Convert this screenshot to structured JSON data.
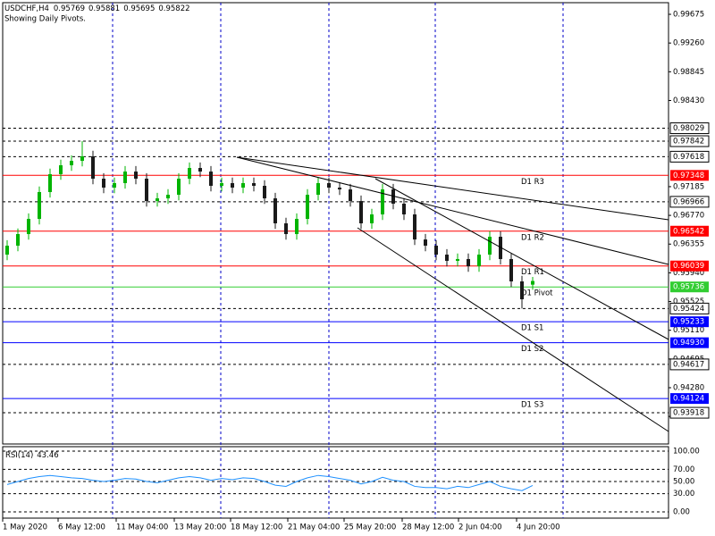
{
  "chart_data": {
    "type": "candlestick",
    "symbol": "USDCHF,H4",
    "ohlc_header": [
      0.95769,
      0.95881,
      0.95695,
      0.95822
    ],
    "subtitle": "Showing Daily Pivots.",
    "up_color": "#00b400",
    "down_color": "#1a1a1a",
    "ylim": [
      0.93467,
      0.99843
    ],
    "yticks": [
      0.99675,
      {
        "value": 0.9926,
        "label": "0.99260"
      },
      0.98845,
      {
        "value": 0.9843,
        "label": "0.98430"
      },
      0.97185,
      {
        "value": 0.9677,
        "label": "0.96770"
      },
      0.96355,
      {
        "value": 0.9594,
        "label": "0.95940"
      },
      0.95525,
      {
        "value": 0.9511,
        "label": "0.95110"
      },
      0.94695,
      {
        "value": 0.9428,
        "label": "0.94280"
      },
      0.93865
    ],
    "dashed_levels": [
      0.98029,
      0.97842,
      0.97618,
      0.96966,
      0.95424,
      0.94617,
      0.93918
    ],
    "pivots": [
      {
        "name": "D1 R3",
        "value": 0.97348,
        "color": "#ff0000"
      },
      {
        "name": "D1 R2",
        "value": 0.96542,
        "color": "#ff0000"
      },
      {
        "name": "D1 R1",
        "value": 0.96039,
        "color": "#ff0000"
      },
      {
        "name": "D1  Pivot",
        "value": 0.95736,
        "color": "#32cd32"
      },
      {
        "name": "D1 S1",
        "value": 0.95233,
        "color": "#0000ff"
      },
      {
        "name": "D1 S2",
        "value": 0.9493,
        "value_label": "0.94930",
        "color": "#0000ff"
      },
      {
        "name": "D1 S3",
        "value": 0.94124,
        "color": "#0000ff"
      }
    ],
    "candles": [
      [
        0.96203,
        0.96412,
        0.96123,
        0.96332
      ],
      [
        0.96332,
        0.9658,
        0.96252,
        0.965
      ],
      [
        0.965,
        0.96799,
        0.9642,
        0.96719
      ],
      [
        0.96719,
        0.97187,
        0.96639,
        0.97107
      ],
      [
        0.97107,
        0.97445,
        0.97027,
        0.97365
      ],
      [
        0.97365,
        0.97574,
        0.97285,
        0.97494
      ],
      [
        0.97494,
        0.97638,
        0.97414,
        0.97558
      ],
      [
        0.97558,
        0.97842,
        0.97478,
        0.97623
      ],
      [
        0.97623,
        0.97703,
        0.9722,
        0.973
      ],
      [
        0.973,
        0.9738,
        0.97091,
        0.97171
      ],
      [
        0.97171,
        0.97316,
        0.97091,
        0.97236
      ],
      [
        0.97236,
        0.97483,
        0.97156,
        0.97403
      ],
      [
        0.97403,
        0.97483,
        0.9722,
        0.973
      ],
      [
        0.973,
        0.9738,
        0.96897,
        0.96977
      ],
      [
        0.96977,
        0.97096,
        0.96897,
        0.97016
      ],
      [
        0.97016,
        0.97148,
        0.96936,
        0.97068
      ],
      [
        0.97068,
        0.9738,
        0.96988,
        0.973
      ],
      [
        0.973,
        0.97535,
        0.9722,
        0.97455
      ],
      [
        0.97455,
        0.97535,
        0.97323,
        0.97403
      ],
      [
        0.97403,
        0.97483,
        0.97117,
        0.97197
      ],
      [
        0.97197,
        0.97316,
        0.97117,
        0.97236
      ],
      [
        0.97236,
        0.97316,
        0.97091,
        0.97171
      ],
      [
        0.97171,
        0.97316,
        0.97091,
        0.97236
      ],
      [
        0.97236,
        0.97316,
        0.97117,
        0.97197
      ],
      [
        0.97197,
        0.97277,
        0.96936,
        0.97016
      ],
      [
        0.97016,
        0.97096,
        0.96575,
        0.96655
      ],
      [
        0.96655,
        0.96735,
        0.9642,
        0.965
      ],
      [
        0.965,
        0.96799,
        0.9642,
        0.96719
      ],
      [
        0.96719,
        0.97148,
        0.96639,
        0.97068
      ],
      [
        0.97068,
        0.97316,
        0.96988,
        0.97236
      ],
      [
        0.97236,
        0.97316,
        0.97091,
        0.97171
      ],
      [
        0.97171,
        0.97251,
        0.97065,
        0.97145
      ],
      [
        0.97145,
        0.97225,
        0.96897,
        0.96977
      ],
      [
        0.96977,
        0.97057,
        0.96575,
        0.96655
      ],
      [
        0.96655,
        0.96864,
        0.96575,
        0.96784
      ],
      [
        0.96784,
        0.97225,
        0.96704,
        0.97145
      ],
      [
        0.97145,
        0.97225,
        0.96859,
        0.96939
      ],
      [
        0.96939,
        0.97019,
        0.96704,
        0.96784
      ],
      [
        0.96784,
        0.96864,
        0.96342,
        0.96422
      ],
      [
        0.96422,
        0.96502,
        0.96252,
        0.96332
      ],
      [
        0.96332,
        0.96412,
        0.96123,
        0.96203
      ],
      [
        0.96203,
        0.96283,
        0.96033,
        0.96113
      ],
      [
        0.96113,
        0.96219,
        0.96033,
        0.96139
      ],
      [
        0.96139,
        0.96219,
        0.95955,
        0.96035
      ],
      [
        0.96035,
        0.96283,
        0.95955,
        0.96203
      ],
      [
        0.96203,
        0.96541,
        0.96123,
        0.96461
      ],
      [
        0.96461,
        0.96541,
        0.96059,
        0.96139
      ],
      [
        0.96139,
        0.96219,
        0.95736,
        0.95816
      ],
      [
        0.95816,
        0.95896,
        0.95424,
        0.95558
      ],
      [
        0.95769,
        0.95881,
        0.95695,
        0.95822
      ]
    ],
    "x_labels": [
      "1 May 2020",
      "6 May 12:00",
      "11 May 04:00",
      "13 May 20:00",
      "18 May 12:00",
      "21 May 04:00",
      "25 May 20:00",
      "28 May 12:00",
      "2 Jun 04:00",
      "4 Jun 20:00"
    ],
    "rsi": {
      "name": "RSI(14)",
      "color": "#1e90ff",
      "ylim": [
        -10.3,
        107.35
      ],
      "yticks": [
        {
          "value": 100,
          "label": "100.00"
        },
        {
          "value": 70,
          "label": "70.00"
        },
        {
          "value": 50,
          "label": "50.00"
        },
        {
          "value": 30,
          "label": "30.00"
        },
        {
          "value": 0,
          "label": "0.00"
        }
      ],
      "values": [
        45,
        50,
        55,
        58,
        60,
        58,
        56,
        55,
        52,
        50,
        52,
        55,
        54,
        50,
        48,
        52,
        56,
        58,
        56,
        52,
        55,
        53,
        56,
        55,
        50,
        44,
        42,
        50,
        56,
        60,
        58,
        55,
        52,
        46,
        50,
        57,
        52,
        50,
        42,
        40,
        40,
        38,
        42,
        40,
        45,
        50,
        42,
        38,
        35,
        43.46
      ]
    }
  }
}
